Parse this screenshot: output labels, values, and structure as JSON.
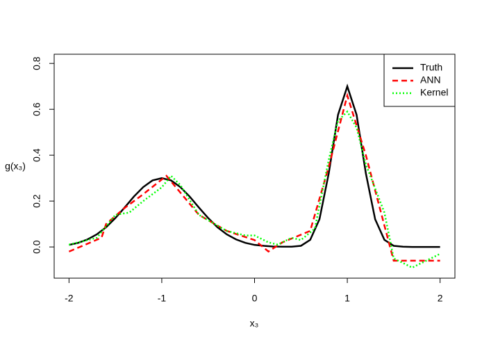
{
  "chart_data": {
    "type": "line",
    "xlabel": "x₃",
    "ylabel": "g(x₃)",
    "xlim": [
      -2.16,
      2.16
    ],
    "ylim": [
      -0.136,
      0.84
    ],
    "xticks": [
      -2,
      -1,
      0,
      1,
      2
    ],
    "yticks": [
      0.0,
      0.2,
      0.4,
      0.6,
      0.8
    ],
    "legend": "top-right",
    "series": [
      {
        "name": "Truth",
        "color": "#000000",
        "dash": "solid",
        "x": [
          -2,
          -1.9,
          -1.8,
          -1.7,
          -1.6,
          -1.5,
          -1.4,
          -1.3,
          -1.2,
          -1.1,
          -1,
          -0.9,
          -0.8,
          -0.7,
          -0.6,
          -0.5,
          -0.4,
          -0.3,
          -0.2,
          -0.1,
          0,
          0.1,
          0.2,
          0.3,
          0.4,
          0.5,
          0.6,
          0.7,
          0.8,
          0.9,
          1,
          1.1,
          1.2,
          1.3,
          1.4,
          1.5,
          1.6,
          1.7,
          1.8,
          1.9,
          2
        ],
        "values": [
          0.009,
          0.018,
          0.033,
          0.055,
          0.086,
          0.126,
          0.172,
          0.22,
          0.261,
          0.29,
          0.3,
          0.29,
          0.261,
          0.22,
          0.172,
          0.126,
          0.086,
          0.055,
          0.033,
          0.018,
          0.009,
          0.005,
          0.002,
          0.001,
          0.001,
          0.005,
          0.031,
          0.121,
          0.321,
          0.576,
          0.7,
          0.576,
          0.321,
          0.121,
          0.031,
          0.005,
          0.001,
          0,
          0,
          0,
          0
        ]
      },
      {
        "name": "ANN",
        "color": "#ff0000",
        "dash": "dashed",
        "x": [
          -2,
          -1.65,
          -1.6,
          -1.4,
          -1.2,
          -0.95,
          -0.6,
          -0.3,
          0,
          0.15,
          0.3,
          0.6,
          0.8,
          1.0,
          1.2,
          1.5,
          2
        ],
        "values": [
          -0.02,
          0.04,
          0.1,
          0.17,
          0.23,
          0.31,
          0.14,
          0.07,
          0.03,
          -0.02,
          0.02,
          0.07,
          0.35,
          0.66,
          0.4,
          -0.06,
          -0.06
        ]
      },
      {
        "name": "Kernel",
        "color": "#00ff00",
        "dash": "dotted",
        "x": [
          -2,
          -1.7,
          -1.5,
          -1.35,
          -1.2,
          -1.0,
          -0.9,
          -0.8,
          -0.6,
          -0.3,
          -0.1,
          0,
          0.15,
          0.25,
          0.4,
          0.5,
          0.65,
          0.8,
          0.9,
          1.0,
          1.1,
          1.2,
          1.4,
          1.5,
          1.7,
          1.8,
          2
        ],
        "values": [
          0.01,
          0.04,
          0.14,
          0.15,
          0.2,
          0.26,
          0.31,
          0.27,
          0.14,
          0.07,
          0.05,
          0.05,
          0.02,
          0.01,
          0.04,
          0.03,
          0.08,
          0.38,
          0.55,
          0.59,
          0.52,
          0.36,
          0.15,
          -0.05,
          -0.09,
          -0.07,
          -0.03
        ]
      }
    ]
  }
}
